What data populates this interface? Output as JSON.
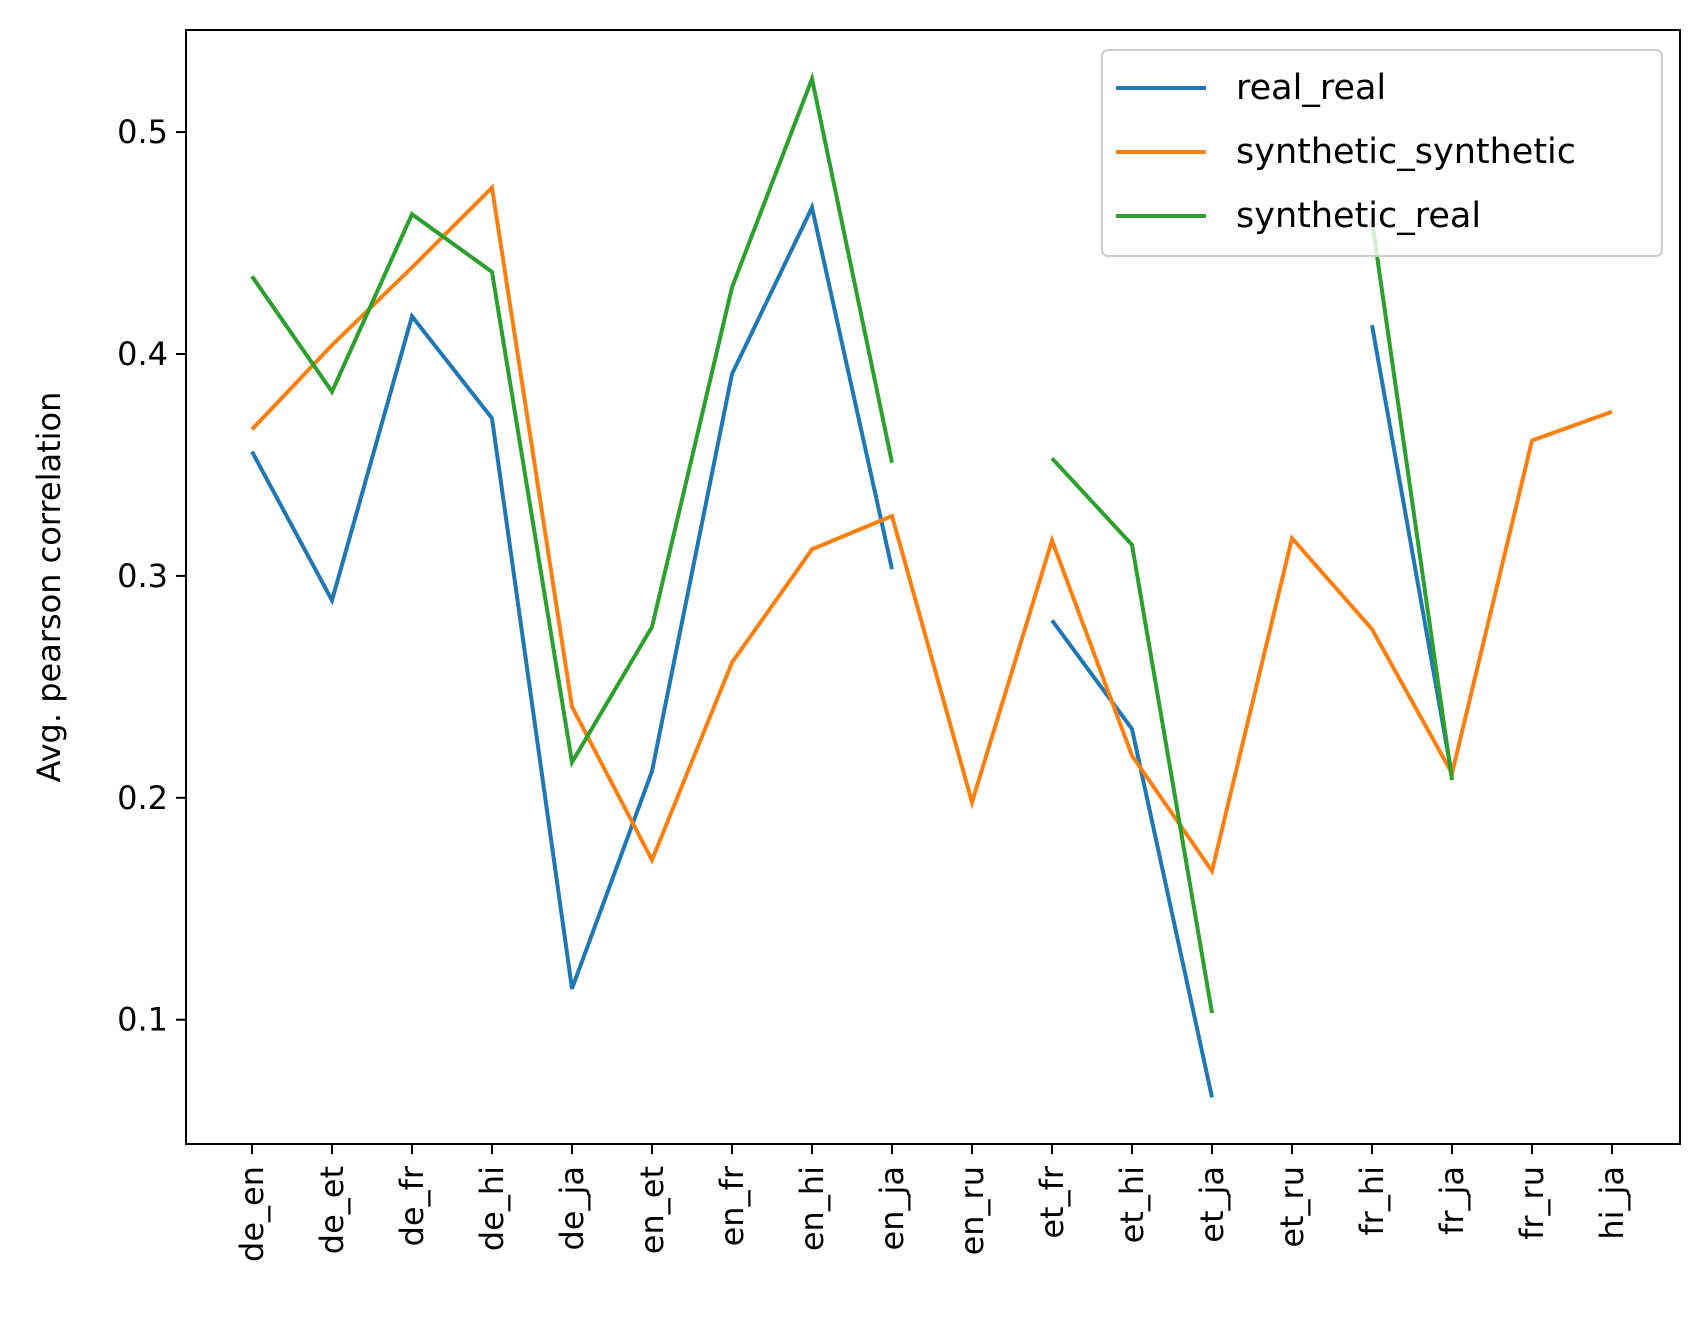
{
  "chart_data": {
    "type": "line",
    "title": "",
    "xlabel": "",
    "ylabel": "Avg. pearson correlation",
    "categories": [
      "de_en",
      "de_et",
      "de_fr",
      "de_hi",
      "de_ja",
      "en_et",
      "en_fr",
      "en_hi",
      "en_ja",
      "en_ru",
      "et_fr",
      "et_hi",
      "et_ja",
      "et_ru",
      "fr_hi",
      "fr_ja",
      "fr_ru",
      "hi_ja"
    ],
    "yticks": [
      0.1,
      0.2,
      0.3,
      0.4,
      0.5
    ],
    "ytick_labels": [
      "0.1",
      "0.2",
      "0.3",
      "0.4",
      "0.5"
    ],
    "ylim": [
      0.044,
      0.546
    ],
    "legend_position": "top-right",
    "grid": false,
    "series": [
      {
        "name": "real_real",
        "color": "#1f77b4",
        "values": [
          0.356,
          0.289,
          0.417,
          0.371,
          0.114,
          0.212,
          0.391,
          0.466,
          0.303,
          null,
          0.28,
          0.231,
          0.065,
          null,
          0.413,
          0.21,
          null,
          null
        ]
      },
      {
        "name": "synthetic_synthetic",
        "color": "#ff7f0e",
        "values": [
          0.366,
          0.404,
          0.439,
          0.475,
          0.241,
          0.172,
          0.261,
          0.312,
          0.327,
          0.198,
          0.316,
          0.219,
          0.167,
          0.317,
          0.276,
          0.211,
          0.361,
          0.374
        ]
      },
      {
        "name": "synthetic_real",
        "color": "#2ca02c",
        "values": [
          0.435,
          0.383,
          0.463,
          0.437,
          0.216,
          0.277,
          0.43,
          0.524,
          0.351,
          null,
          0.353,
          0.314,
          0.103,
          null,
          0.46,
          0.208,
          null,
          null
        ]
      }
    ]
  }
}
